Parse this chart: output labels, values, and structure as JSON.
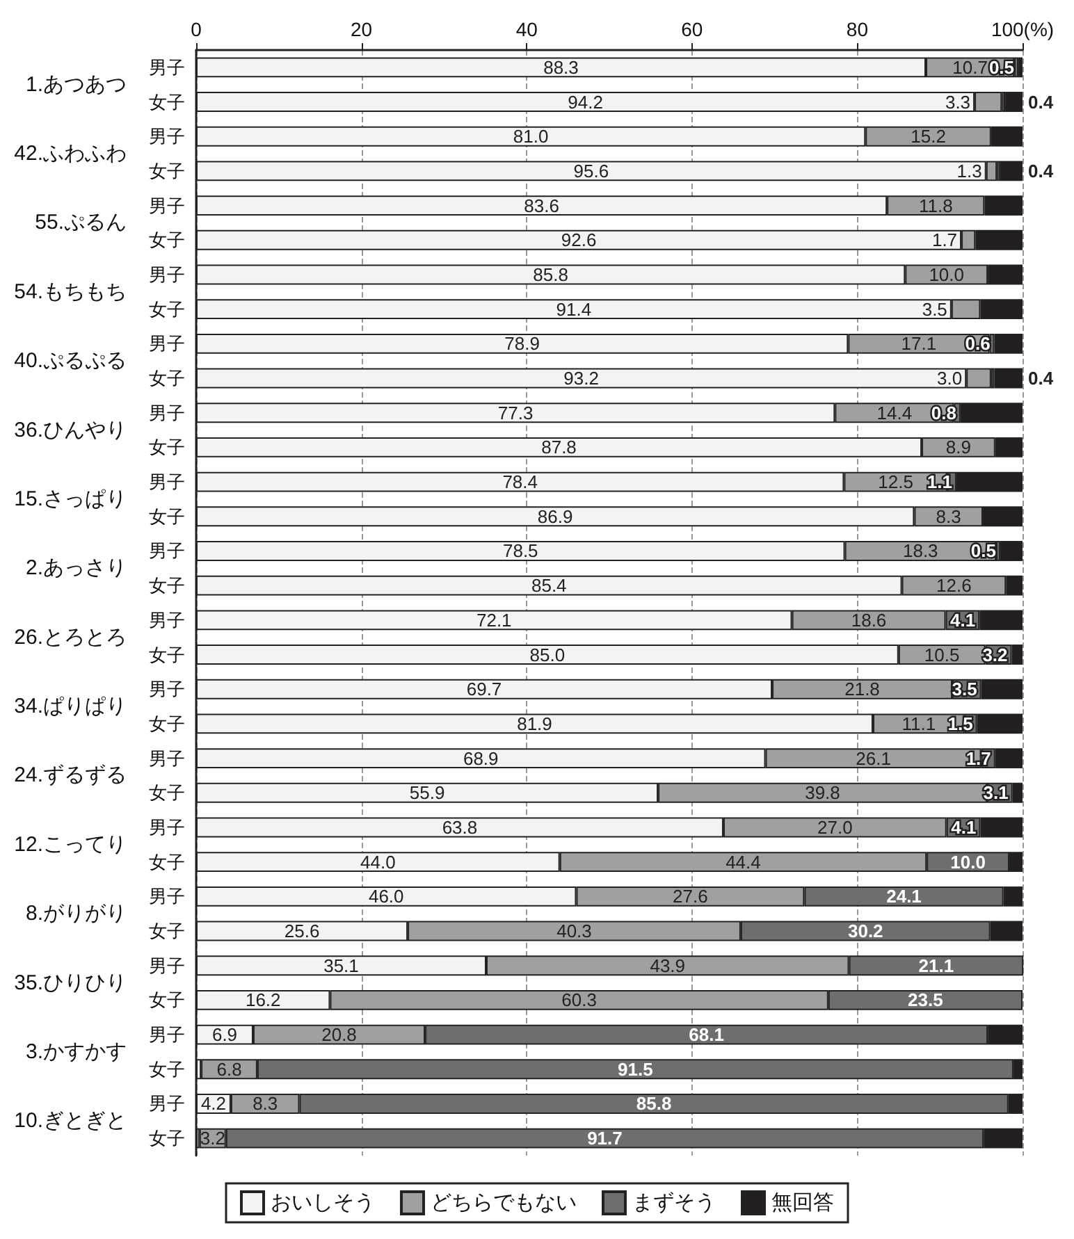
{
  "chart_data": {
    "type": "bar",
    "orientation": "horizontal",
    "stacked": true,
    "categories": [
      "男子",
      "女子",
      "男子",
      "女子",
      "男子",
      "女子",
      "男子",
      "女子",
      "男子",
      "女子",
      "男子",
      "女子",
      "男子",
      "女子",
      "男子",
      "女子",
      "男子",
      "女子",
      "男子",
      "女子",
      "男子",
      "女子",
      "男子",
      "女子",
      "男子",
      "女子",
      "男子",
      "女子",
      "男子",
      "女子",
      "男子",
      "女子"
    ],
    "annotations": [
      "1.あつあつ",
      "42.ふわふわ",
      "55.ぷるん",
      "54.もちもち",
      "40.ぷるぷる",
      "36.ひんやり",
      "15.さっぱり",
      "2.あっさり",
      "26.とろとろ",
      "34.ぱりぱり",
      "24.ずるずる",
      "12.こってり",
      "8.がりがり",
      "35.ひりひり",
      "3.かすかす",
      "10.ぎとぎと"
    ],
    "series": [
      {
        "name": "おいしそう",
        "color": "#f2f3f2",
        "values": [
          88.3,
          94.2,
          81.0,
          95.6,
          83.6,
          92.6,
          85.8,
          91.4,
          78.9,
          93.2,
          77.3,
          87.8,
          78.4,
          86.9,
          78.5,
          85.4,
          72.1,
          85.0,
          69.7,
          81.9,
          68.9,
          55.9,
          63.8,
          44.0,
          46.0,
          25.6,
          35.1,
          16.2,
          6.9,
          0.6,
          4.2,
          0.4
        ],
        "value_labels": [
          "88.3",
          "94.2",
          "81.0",
          "95.6",
          "83.6",
          "92.6",
          "85.8",
          "91.4",
          "78.9",
          "93.2",
          "77.3",
          "87.8",
          "78.4",
          "86.9",
          "78.5",
          "85.4",
          "72.1",
          "85.0",
          "69.7",
          "81.9",
          "68.9",
          "55.9",
          "63.8",
          "44.0",
          "46.0",
          "25.6",
          "35.1",
          "16.2",
          "6.9",
          null,
          "4.2",
          null
        ]
      },
      {
        "name": "どちらでもない",
        "color": "#a0a0a2",
        "values": [
          10.7,
          3.3,
          15.2,
          1.3,
          11.8,
          1.7,
          10.0,
          3.5,
          17.1,
          3.0,
          14.4,
          8.9,
          12.5,
          8.3,
          18.3,
          12.6,
          18.6,
          10.5,
          21.8,
          11.1,
          26.1,
          39.8,
          27.0,
          44.4,
          27.6,
          40.3,
          43.9,
          60.3,
          20.8,
          6.8,
          8.3,
          3.2
        ],
        "value_labels": [
          "10.7",
          "3.3",
          "15.2",
          "1.3",
          "11.8",
          "1.7",
          "10.0",
          "3.5",
          "17.1",
          "3.0",
          "14.4",
          "8.9",
          "12.5",
          "8.3",
          "18.3",
          "12.6",
          "18.6",
          "10.5",
          "21.8",
          "11.1",
          "26.1",
          "39.8",
          "27.0",
          "44.4",
          "27.6",
          "40.3",
          "43.9",
          "60.3",
          "20.8",
          "6.8",
          "8.3",
          "3.2"
        ]
      },
      {
        "name": "まずそう",
        "color": "#6e6e70",
        "values": [
          0.5,
          0.4,
          0,
          0.4,
          0,
          0,
          0,
          0,
          0.6,
          0.4,
          0.8,
          0,
          1.1,
          0,
          0.5,
          0,
          4.1,
          3.2,
          3.5,
          1.5,
          1.7,
          3.1,
          4.1,
          10.0,
          24.1,
          30.2,
          21.1,
          23.5,
          68.1,
          91.5,
          85.8,
          91.7
        ],
        "value_labels": [
          "0.5",
          "0.4",
          null,
          "0.4",
          null,
          null,
          null,
          null,
          "0.6",
          "0.4",
          "0.8",
          null,
          "1.1",
          null,
          "0.5",
          null,
          "4.1",
          "3.2",
          "3.5",
          "1.5",
          "1.7",
          "3.1",
          "4.1",
          "10.0",
          "24.1",
          "30.2",
          "21.1",
          "23.5",
          "68.1",
          "91.5",
          "85.8",
          "91.7"
        ]
      },
      {
        "name": "無回答",
        "color": "#231f20",
        "values": [
          0.5,
          2.1,
          3.8,
          2.7,
          4.6,
          5.7,
          4.2,
          5.1,
          3.4,
          3.4,
          7.5,
          3.3,
          8.0,
          4.8,
          2.7,
          2.0,
          5.2,
          1.3,
          5.0,
          5.5,
          3.3,
          1.2,
          5.1,
          1.6,
          2.3,
          3.9,
          0,
          0,
          4.2,
          1.1,
          1.7,
          4.7
        ]
      }
    ],
    "xlim": [
      0,
      100
    ],
    "xticks": [
      0,
      20,
      40,
      60,
      80,
      {
        "value": 100,
        "label": "100(%)"
      }
    ],
    "grid": "x",
    "legend": "bottom"
  }
}
